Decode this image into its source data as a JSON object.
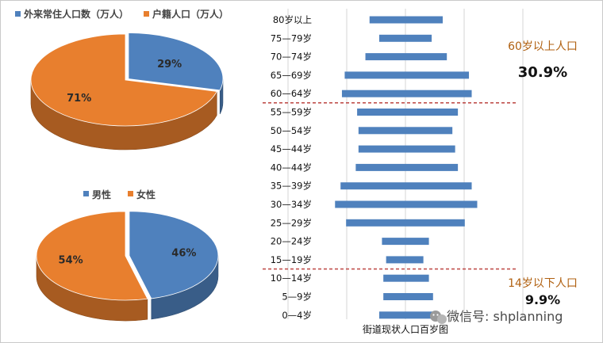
{
  "chart_data": [
    {
      "type": "pie",
      "legend": [
        "外来常住人口数（万人）",
        "户籍人口（万人）"
      ],
      "slices": [
        {
          "name": "外来常住人口数（万人）",
          "value": 29,
          "label": "29%",
          "color": "#4f81bd"
        },
        {
          "name": "户籍人口（万人）",
          "value": 71,
          "label": "71%",
          "color": "#e87f2e"
        }
      ],
      "legend_position": "top"
    },
    {
      "type": "pie",
      "legend": [
        "男性",
        "女性"
      ],
      "slices": [
        {
          "name": "男性",
          "value": 46,
          "label": "46%",
          "color": "#4f81bd"
        },
        {
          "name": "女性",
          "value": 54,
          "label": "54%",
          "color": "#e87f2e"
        }
      ],
      "legend_position": "top"
    },
    {
      "type": "bar",
      "orientation": "horizontal-population-pyramid",
      "title": "街道现状人口百岁图",
      "categories": [
        "80岁以上",
        "75—79岁",
        "70—74岁",
        "65—69岁",
        "60—64岁",
        "55—59岁",
        "50—54岁",
        "45—44岁",
        "40—44岁",
        "35—39岁",
        "30—34岁",
        "25—29岁",
        "20—24岁",
        "15—19岁",
        "10—14岁",
        "5—9岁",
        "0—4岁"
      ],
      "series": [
        {
          "values": [
            2.6,
            1.9,
            2.9,
            4.4,
            4.6,
            3.5,
            3.4,
            3.4,
            3.6,
            4.7,
            5.1,
            4.3,
            1.7,
            1.4,
            1.6,
            1.6,
            1.9
          ]
        },
        {
          "values": [
            2.7,
            1.9,
            3.0,
            4.6,
            4.8,
            3.8,
            3.4,
            3.6,
            3.8,
            4.8,
            5.2,
            4.3,
            1.7,
            1.3,
            1.7,
            2.0,
            2.0
          ]
        }
      ],
      "annotations": [
        {
          "text": "60岁以上人口",
          "value": "30.9%"
        },
        {
          "text": "14岁以下人口",
          "value": "9.9%"
        }
      ],
      "grid": true,
      "colors": {
        "bar": "#4f81bd",
        "divider": "#c0504d",
        "annotation_text": "#b06010"
      }
    }
  ],
  "watermark": "微信号: shplanning"
}
